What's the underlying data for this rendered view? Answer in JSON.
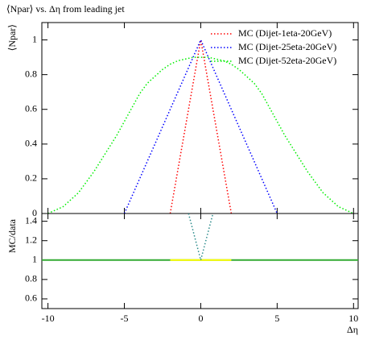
{
  "chart_data": [
    {
      "type": "line",
      "title": "⟨Npar⟩ vs. Δη from leading jet",
      "ylabel": "⟨Npar⟩",
      "x": [
        -10,
        -9.5,
        -9,
        -8.5,
        -8,
        -7.5,
        -7,
        -6.5,
        -6,
        -5.5,
        -5,
        -4.5,
        -4,
        -3.5,
        -3,
        -2.5,
        -2,
        -1.5,
        -1,
        -0.5,
        0,
        0.5,
        1,
        1.5,
        2,
        2.5,
        3,
        3.5,
        4,
        4.5,
        5,
        5.5,
        6,
        6.5,
        7,
        7.5,
        8,
        8.5,
        9,
        9.5,
        10
      ],
      "series": [
        {
          "name": "MC (Dijet-1eta-20GeV)",
          "color": "#ff0000",
          "linestyle": "dotted",
          "values": [
            null,
            null,
            null,
            null,
            null,
            null,
            null,
            null,
            null,
            null,
            null,
            null,
            null,
            null,
            null,
            null,
            0,
            0.25,
            0.5,
            0.75,
            1,
            0.75,
            0.5,
            0.25,
            0,
            null,
            null,
            null,
            null,
            null,
            null,
            null,
            null,
            null,
            null,
            null,
            null,
            null,
            null,
            null,
            null
          ]
        },
        {
          "name": "MC (Dijet-25eta-20GeV)",
          "color": "#0000ff",
          "linestyle": "dotted",
          "values": [
            null,
            null,
            null,
            null,
            null,
            null,
            null,
            null,
            null,
            null,
            0,
            0.1,
            0.2,
            0.3,
            0.4,
            0.5,
            0.6,
            0.7,
            0.8,
            0.9,
            1,
            0.9,
            0.8,
            0.7,
            0.6,
            0.5,
            0.4,
            0.3,
            0.2,
            0.1,
            0,
            null,
            null,
            null,
            null,
            null,
            null,
            null,
            null,
            null,
            null
          ]
        },
        {
          "name": "MC (Dijet-52eta-20GeV)",
          "color": "#00ee00",
          "linestyle": "dotted",
          "values": [
            0,
            0.02,
            0.04,
            0.08,
            0.12,
            0.18,
            0.24,
            0.31,
            0.38,
            0.45,
            0.53,
            0.61,
            0.69,
            0.75,
            0.79,
            0.83,
            0.86,
            0.88,
            0.89,
            0.9,
            0.9,
            0.9,
            0.89,
            0.88,
            0.86,
            0.83,
            0.79,
            0.75,
            0.69,
            0.61,
            0.53,
            0.45,
            0.38,
            0.31,
            0.24,
            0.18,
            0.12,
            0.08,
            0.04,
            0.02,
            0
          ]
        }
      ],
      "xlim": [
        -10.4,
        10.3
      ],
      "xticks": [
        -10,
        -5,
        0,
        5,
        10
      ],
      "ylim": [
        0,
        1.1
      ],
      "yticks": [
        0,
        0.2,
        0.4,
        0.6,
        0.8,
        1
      ],
      "legend": "upper right"
    },
    {
      "type": "line",
      "ylabel": "MC/data",
      "xlabel": "Δη",
      "series": [
        {
          "color": "#33aa33",
          "linestyle": "solid",
          "x": [
            -10.4,
            10.3
          ],
          "values": [
            1,
            1
          ]
        },
        {
          "color": "#ffff00",
          "linestyle": "solid",
          "x": [
            -2,
            2
          ],
          "values": [
            1,
            1
          ]
        },
        {
          "color": "#2a8a8a",
          "linestyle": "dotted",
          "x": [
            -0.8,
            -0.4,
            0,
            0.4,
            0.8
          ],
          "values": [
            1.48,
            1.24,
            1,
            1.24,
            1.48
          ]
        }
      ],
      "xlim": [
        -10.4,
        10.3
      ],
      "xticks": [
        -10,
        -5,
        0,
        5,
        10
      ],
      "ylim": [
        0.5,
        1.48
      ],
      "yticks": [
        0.6,
        0.8,
        1,
        1.2,
        1.4
      ]
    }
  ]
}
